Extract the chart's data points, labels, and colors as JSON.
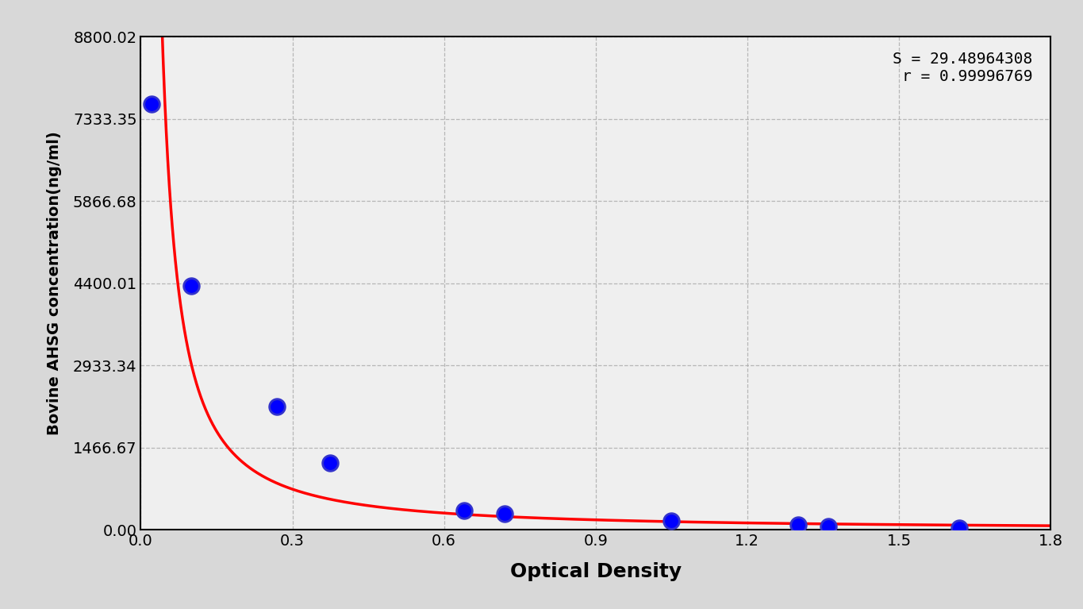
{
  "scatter_x": [
    0.022,
    0.1,
    0.27,
    0.375,
    0.64,
    0.72,
    1.05,
    1.3,
    1.36,
    1.62
  ],
  "scatter_y": [
    7600,
    4350,
    2200,
    1200,
    340,
    290,
    160,
    95,
    65,
    30
  ],
  "xlabel": "Optical Density",
  "ylabel": "Bovine AHSG concentration(ng/ml)",
  "xlim": [
    0.0,
    1.8
  ],
  "ylim": [
    0.0,
    8800.02
  ],
  "yticks": [
    0.0,
    1466.67,
    2933.34,
    4400.01,
    5866.68,
    7333.35,
    8800.02
  ],
  "ytick_labels": [
    "0.00",
    "1466.67",
    "2933.34",
    "4400.01",
    "5866.68",
    "7333.35",
    "8800.02"
  ],
  "xticks": [
    0.0,
    0.3,
    0.6,
    0.9,
    1.2,
    1.5,
    1.8
  ],
  "xtick_labels": [
    "0.0",
    "0.3",
    "0.6",
    "0.9",
    "1.2",
    "1.5",
    "1.8"
  ],
  "curve_color": "#FF0000",
  "scatter_face_color": "#0000FF",
  "scatter_edge_color": "#0000FF",
  "background_color": "#D8D8D8",
  "plot_bg_color": "#EFEFEF",
  "grid_color": "#AAAAAA",
  "annotation_text": "S = 29.48964308\nr = 0.99996769",
  "curve_x_start": 0.008,
  "curve_x_end": 1.8
}
